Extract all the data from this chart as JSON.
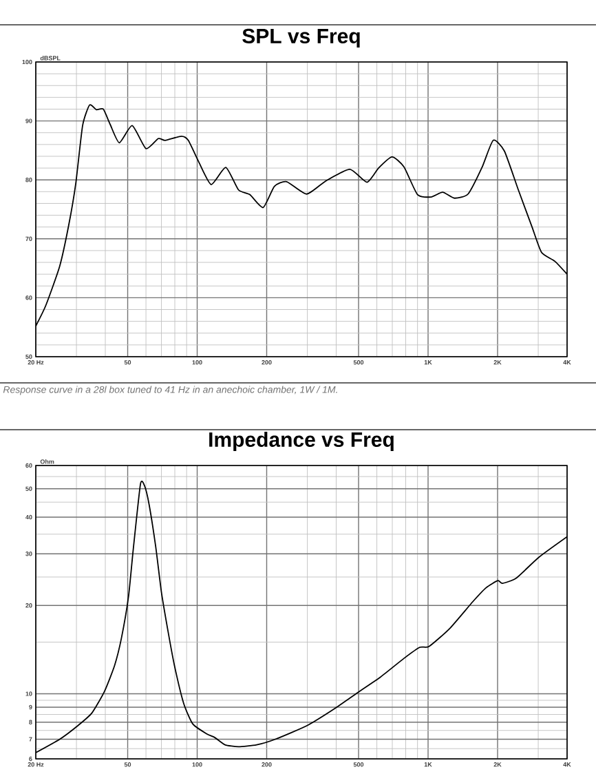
{
  "chart_data": [
    {
      "type": "line",
      "title": "SPL vs Freq",
      "ylabel": "dBSPL",
      "log": "x",
      "grid": true,
      "x": [
        20,
        22.1,
        25.4,
        27.8,
        29.8,
        31.9,
        34.2,
        36.6,
        39.2,
        42,
        46,
        52.3,
        60,
        67.8,
        72.7,
        85.4,
        91.5,
        102,
        115,
        133,
        151,
        169,
        193,
        216,
        244,
        298,
        360,
        458,
        544,
        610,
        698,
        786,
        900,
        1030,
        1156,
        1300,
        1490,
        1712,
        1914,
        2140,
        2460,
        2820,
        3100,
        3540,
        4000
      ],
      "series": [
        {
          "color": "#000000",
          "values": [
            55.2,
            58.7,
            65.4,
            72.4,
            79.4,
            89.2,
            92.7,
            91.9,
            92.0,
            89.4,
            86.3,
            89.2,
            85.3,
            87.0,
            86.7,
            87.4,
            86.7,
            82.9,
            79.2,
            82.1,
            78.3,
            77.5,
            75.3,
            78.9,
            79.7,
            77.6,
            79.8,
            81.8,
            79.6,
            82.0,
            83.9,
            82.2,
            77.5,
            77.1,
            77.9,
            76.9,
            77.6,
            82.1,
            86.7,
            84.9,
            78.3,
            72.0,
            67.7,
            66.2,
            64.0
          ]
        }
      ],
      "xlim": [
        20,
        4000
      ],
      "xticks": [
        {
          "value": 20,
          "label": "20 Hz"
        },
        50,
        100,
        200,
        500,
        {
          "value": 1000,
          "label": "1K"
        },
        {
          "value": 2000,
          "label": "2K"
        },
        {
          "value": 4000,
          "label": "4K"
        }
      ],
      "ylim": [
        50,
        100
      ],
      "yticks": [
        50,
        60,
        70,
        80,
        90,
        100
      ],
      "annotations": [
        "Response curve in a 28l box tuned to 41 Hz in an anechoic chamber, 1W / 1M."
      ]
    },
    {
      "type": "line",
      "title": "Impedance vs Freq",
      "ylabel": "Ohm",
      "log": "xy",
      "grid": true,
      "x": [
        20,
        25.4,
        30.5,
        35,
        39.7,
        43.9,
        47,
        50.4,
        52.8,
        56.8,
        59.2,
        61.9,
        66.1,
        70,
        74.4,
        79.7,
        87.3,
        95.6,
        110,
        119,
        132,
        151,
        181,
        218,
        300,
        394,
        496,
        622,
        786,
        920,
        1010,
        1242,
        1562,
        1786,
        2006,
        2100,
        2410,
        3020,
        4000
      ],
      "series": [
        {
          "color": "#000000",
          "values": [
            6.3,
            7.0,
            7.8,
            8.6,
            10.2,
            12.5,
            15.5,
            21.4,
            30.8,
            51.9,
            51.1,
            44.2,
            31.8,
            22.2,
            16.7,
            12.5,
            9.3,
            7.9,
            7.3,
            7.1,
            6.7,
            6.6,
            6.7,
            7.0,
            7.8,
            8.9,
            10.1,
            11.4,
            13.2,
            14.4,
            14.5,
            16.7,
            20.6,
            23.0,
            24.3,
            23.8,
            24.8,
            29.2,
            34.3
          ]
        }
      ],
      "xlim": [
        20,
        4000
      ],
      "xticks": [
        {
          "value": 20,
          "label": "20 Hz"
        },
        50,
        100,
        200,
        500,
        {
          "value": 1000,
          "label": "1K"
        },
        {
          "value": 2000,
          "label": "2K"
        },
        {
          "value": 4000,
          "label": "4K"
        }
      ],
      "ylim": [
        6,
        60
      ],
      "yticks": [
        6,
        7,
        8,
        9,
        10,
        20,
        30,
        40,
        50,
        60
      ]
    }
  ]
}
